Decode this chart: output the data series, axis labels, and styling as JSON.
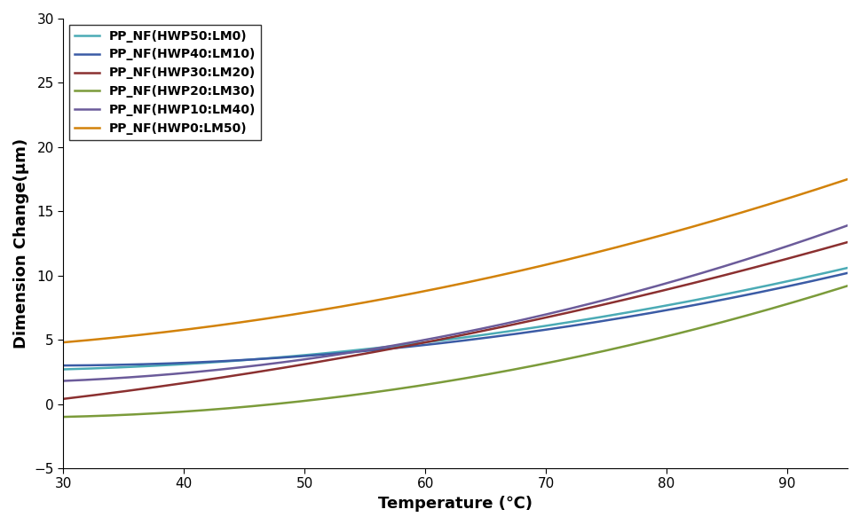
{
  "title": "",
  "xlabel": "Temperature (℃)",
  "ylabel": "Dimension Change(μm)",
  "xlim": [
    30,
    95
  ],
  "ylim": [
    -5,
    30
  ],
  "xticks": [
    30,
    40,
    50,
    60,
    70,
    80,
    90
  ],
  "yticks": [
    -5,
    0,
    5,
    10,
    15,
    20,
    25,
    30
  ],
  "series": [
    {
      "label": "PP_NF(HWP50:LM0)",
      "color": "#4BABB5",
      "coeffs": [
        2.7,
        -0.002,
        0.0018
      ]
    },
    {
      "label": "PP_NF(HWP40:LM10)",
      "color": "#3B5BA5",
      "coeffs": [
        3.0,
        -0.004,
        0.0019
      ]
    },
    {
      "label": "PP_NF(HWP30:LM20)",
      "color": "#8B3030",
      "coeffs": [
        0.4,
        0.005,
        0.0022
      ]
    },
    {
      "label": "PP_NF(HWP20:LM30)",
      "color": "#7B9B3A",
      "coeffs": [
        -1.0,
        0.008,
        0.002
      ]
    },
    {
      "label": "PP_NF(HWP10:LM40)",
      "color": "#6B5B9A",
      "coeffs": [
        1.8,
        0.002,
        0.0026
      ]
    },
    {
      "label": "PP_NF(HWP0:LM50)",
      "color": "#D2820A",
      "coeffs": [
        4.8,
        -0.01,
        0.0048
      ]
    }
  ],
  "background_color": "#ffffff",
  "legend_fontsize": 10,
  "axis_label_fontsize": 13,
  "tick_fontsize": 11,
  "linewidth": 1.8
}
